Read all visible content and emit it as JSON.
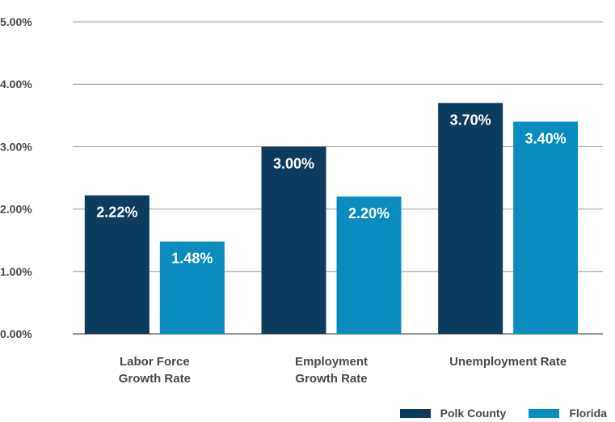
{
  "chart_data": {
    "type": "bar",
    "categories": [
      [
        "Labor Force",
        "Growth Rate"
      ],
      [
        "Employment",
        "Growth Rate"
      ],
      [
        "Unemployment Rate"
      ]
    ],
    "series": [
      {
        "name": "Polk County",
        "color": "#0d3c61",
        "values": [
          2.22,
          3.0,
          3.7
        ],
        "labels": [
          "2.22%",
          "3.00%",
          "3.70%"
        ]
      },
      {
        "name": "Florida",
        "color": "#0b8cc0",
        "values": [
          1.48,
          2.2,
          3.4
        ],
        "labels": [
          "1.48%",
          "2.20%",
          "3.40%"
        ]
      }
    ],
    "ylim": [
      0,
      5
    ],
    "yticks": [
      "0.00%",
      "1.00%",
      "2.00%",
      "3.00%",
      "4.00%",
      "5.00%"
    ],
    "grid": true,
    "legend_position": "bottom-right"
  }
}
